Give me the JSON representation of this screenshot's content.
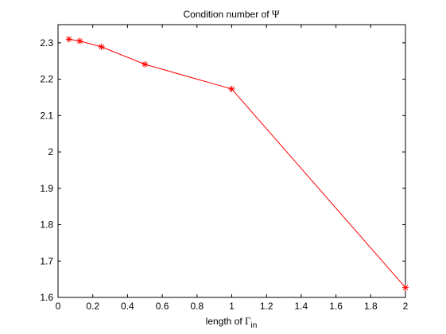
{
  "chart_data": {
    "type": "line",
    "title_parts": {
      "prefix": "Condition number of ",
      "symbol": "Ψ"
    },
    "xlabel_parts": {
      "prefix": "length of ",
      "symbol": "Γ",
      "subscript": "in"
    },
    "xlim": [
      0,
      2
    ],
    "ylim": [
      1.6,
      2.35
    ],
    "x_ticks": [
      "0",
      "0.2",
      "0.4",
      "0.6",
      "0.8",
      "1",
      "1.2",
      "1.4",
      "1.6",
      "1.8",
      "2"
    ],
    "y_ticks": [
      "1.6",
      "1.7",
      "1.8",
      "1.9",
      "2",
      "2.1",
      "2.2",
      "2.3"
    ],
    "series": [
      {
        "color": "#ff0000",
        "marker": "asterisk",
        "x": [
          0.0625,
          0.125,
          0.25,
          0.5,
          1,
          2
        ],
        "y": [
          2.31,
          2.305,
          2.289,
          2.241,
          2.173,
          1.627
        ]
      }
    ],
    "grid": false
  }
}
